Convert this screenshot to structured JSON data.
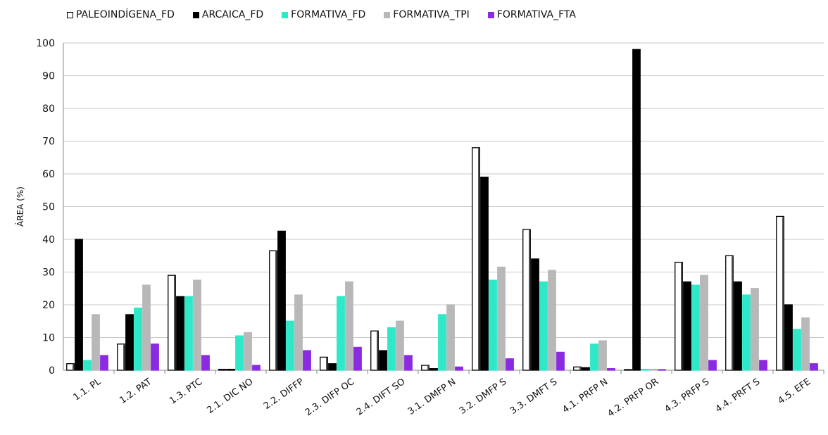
{
  "chart_data": {
    "type": "bar",
    "title": "",
    "xlabel": "",
    "ylabel": "ÁREA (%)",
    "ylim": [
      0,
      100
    ],
    "yticks": [
      "0",
      "10",
      "20",
      "30",
      "40",
      "50",
      "60",
      "70",
      "80",
      "90",
      "100"
    ],
    "grid": "horizontal",
    "legend_position": "top",
    "categories": [
      "1.1. PL",
      "1.2. PAT",
      "1.3. PTC",
      "2.1. DIC NO",
      "2.2. DIFFP",
      "2.3. DIFP OC",
      "2.4. DIFT SO",
      "3.1. DMFP N",
      "3.2. DMFP S",
      "3.3. DMFT S",
      "4.1. PRFP N",
      "4.2. PRFP OR",
      "4.3. PRFP S",
      "4.4. PRFT S",
      "4.5. EFE"
    ],
    "series": [
      {
        "name": "PALEOINDÍGENA_FD",
        "color": "#ffffff",
        "stroke": "#000000",
        "values": [
          2,
          8,
          29,
          0.3,
          36.5,
          4,
          12,
          1.5,
          68,
          43,
          1,
          0.2,
          33,
          35,
          47
        ]
      },
      {
        "name": "ARCAICA_FD",
        "color": "#000000",
        "stroke": "#000000",
        "values": [
          40,
          17,
          22.5,
          0.3,
          42.5,
          2,
          6,
          0.5,
          59,
          34,
          0.8,
          98,
          27,
          27,
          20
        ]
      },
      {
        "name": "FORMATIVA_FD",
        "color": "#2ee8c8",
        "stroke": "#2ee8c8",
        "values": [
          3,
          19,
          22.5,
          10.5,
          15,
          22.5,
          13,
          17,
          27.5,
          27,
          8,
          0.3,
          26,
          23,
          12.5
        ]
      },
      {
        "name": "FORMATIVA_TPI",
        "color": "#b8b8b8",
        "stroke": "#b8b8b8",
        "values": [
          17,
          26,
          27.5,
          11.5,
          23,
          27,
          15,
          20,
          31.5,
          30.5,
          9,
          0.3,
          29,
          25,
          16
        ]
      },
      {
        "name": "FORMATIVA_FTA",
        "color": "#8a2be2",
        "stroke": "#8a2be2",
        "values": [
          4.5,
          8,
          4.5,
          1.5,
          6,
          7,
          4.5,
          1,
          3.5,
          5.5,
          0.5,
          0.2,
          3,
          3,
          2
        ]
      }
    ]
  }
}
